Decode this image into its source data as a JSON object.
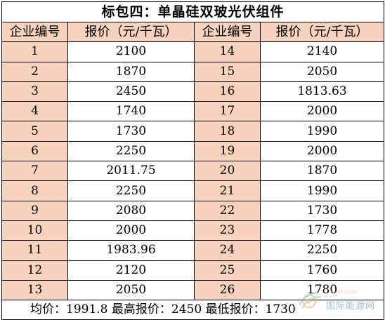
{
  "table": {
    "title": "标包四：单晶硅双玻光伏组件",
    "headers": [
      "企业编号",
      "报价（元/千瓦）",
      "企业编号",
      "报价（元/千瓦）"
    ],
    "rows": [
      {
        "id_left": "1",
        "price_left": "2100",
        "id_right": "14",
        "price_right": "2140"
      },
      {
        "id_left": "2",
        "price_left": "1870",
        "id_right": "15",
        "price_right": "2050"
      },
      {
        "id_left": "3",
        "price_left": "2450",
        "id_right": "16",
        "price_right": "1813.63"
      },
      {
        "id_left": "4",
        "price_left": "1740",
        "id_right": "17",
        "price_right": "2000"
      },
      {
        "id_left": "5",
        "price_left": "1730",
        "id_right": "18",
        "price_right": "1990"
      },
      {
        "id_left": "6",
        "price_left": "2250",
        "id_right": "19",
        "price_right": "2000"
      },
      {
        "id_left": "7",
        "price_left": "2011.75",
        "id_right": "20",
        "price_right": "1870"
      },
      {
        "id_left": "8",
        "price_left": "2250",
        "id_right": "21",
        "price_right": "1990"
      },
      {
        "id_left": "9",
        "price_left": "2080",
        "id_right": "22",
        "price_right": "1730"
      },
      {
        "id_left": "10",
        "price_left": "2000",
        "id_right": "23",
        "price_right": "1778"
      },
      {
        "id_left": "11",
        "price_left": "1983.96",
        "id_right": "24",
        "price_right": "2250"
      },
      {
        "id_left": "12",
        "price_left": "2120",
        "id_right": "25",
        "price_right": "1760"
      },
      {
        "id_left": "13",
        "price_left": "2050",
        "id_right": "26",
        "price_right": "1780"
      }
    ],
    "summary": "均价：1991.8  最高报价：2450  最低报价：1730"
  },
  "colors": {
    "header_fill": "#f7d3bd",
    "id_fill": "#f7d3bd",
    "border": "#000000"
  },
  "watermark": {
    "icon": "sun-logo-icon",
    "text": "国际能源网",
    "url": "in-en.com"
  }
}
